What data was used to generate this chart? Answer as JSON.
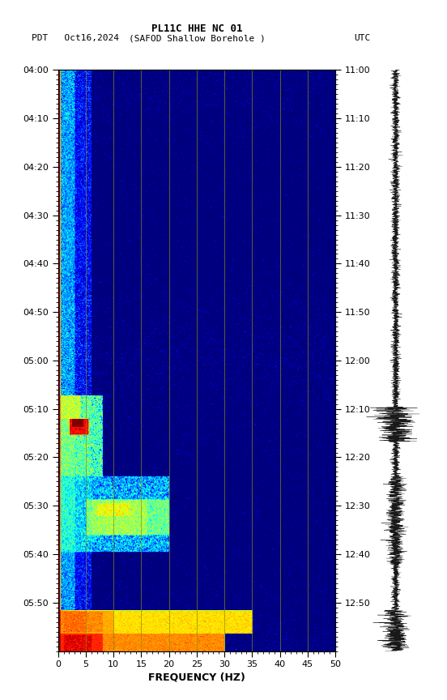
{
  "title_line1": "PL11C HHE NC 01",
  "title_line2_left": "PDT   Oct16,2024",
  "title_line2_center": "(SAFOD Shallow Borehole )",
  "title_line2_right": "UTC",
  "xlabel": "FREQUENCY (HZ)",
  "freq_min": 0,
  "freq_max": 50,
  "freq_ticks": [
    0,
    5,
    10,
    15,
    20,
    25,
    30,
    35,
    40,
    45,
    50
  ],
  "left_yticks": [
    "04:00",
    "04:10",
    "04:20",
    "04:30",
    "04:40",
    "04:50",
    "05:00",
    "05:10",
    "05:20",
    "05:30",
    "05:40",
    "05:50"
  ],
  "right_yticks": [
    "11:00",
    "11:10",
    "11:20",
    "11:30",
    "11:40",
    "11:50",
    "12:00",
    "12:10",
    "12:20",
    "12:30",
    "12:40",
    "12:50"
  ],
  "grid_color": "#8B8B00",
  "fig_bg": "#ffffff",
  "n_time": 720,
  "n_freq": 500
}
